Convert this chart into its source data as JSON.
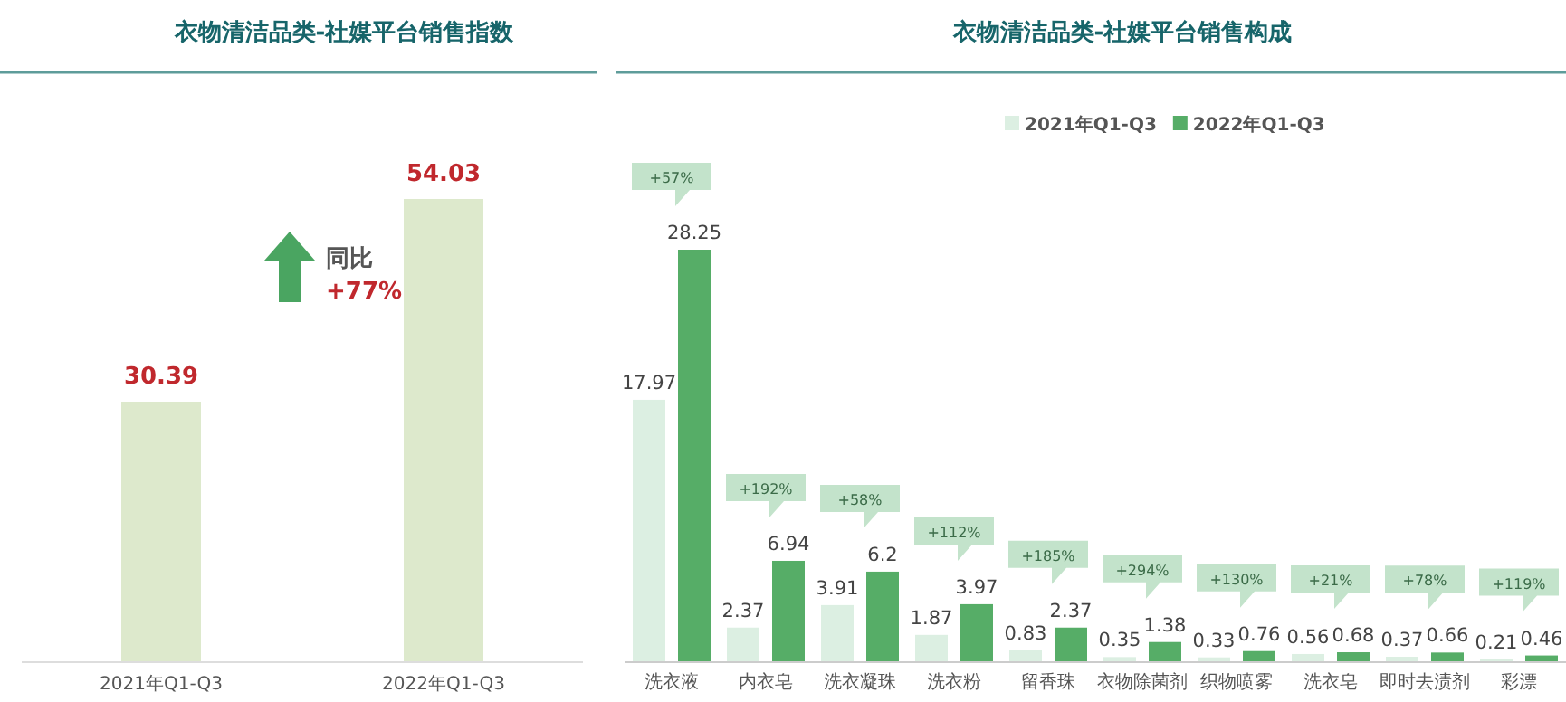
{
  "chart_data": [
    {
      "type": "bar",
      "title": "衣物清洁品类-社媒平台销售指数",
      "categories": [
        "2021年Q1-Q3",
        "2022年Q1-Q3"
      ],
      "values": [
        30.39,
        54.03
      ],
      "color": "#dde9cc",
      "data_labels": true,
      "annotations": [
        "同比",
        "+77%"
      ]
    },
    {
      "type": "bar",
      "title": "衣物清洁品类-社媒平台销售构成",
      "categories": [
        "洗衣液",
        "内衣皂",
        "洗衣凝珠",
        "洗衣粉",
        "留香珠",
        "衣物除菌剂",
        "织物喷雾",
        "洗衣皂",
        "即时去渍剂",
        "彩漂"
      ],
      "series": [
        {
          "name": "2021年Q1-Q3",
          "color": "#dcefe2",
          "values": [
            17.97,
            2.37,
            3.91,
            1.87,
            0.83,
            0.35,
            0.33,
            0.56,
            0.37,
            0.21
          ]
        },
        {
          "name": "2022年Q1-Q3",
          "color": "#56ad67",
          "values": [
            28.25,
            6.94,
            6.2,
            3.97,
            2.37,
            1.38,
            0.76,
            0.68,
            0.66,
            0.46
          ]
        }
      ],
      "data_labels": true,
      "legend": "top",
      "annotations": [
        "+57%",
        "+192%",
        "+58%",
        "+112%",
        "+185%",
        "+294%",
        "+130%",
        "+21%",
        "+78%",
        "+119%"
      ]
    }
  ]
}
